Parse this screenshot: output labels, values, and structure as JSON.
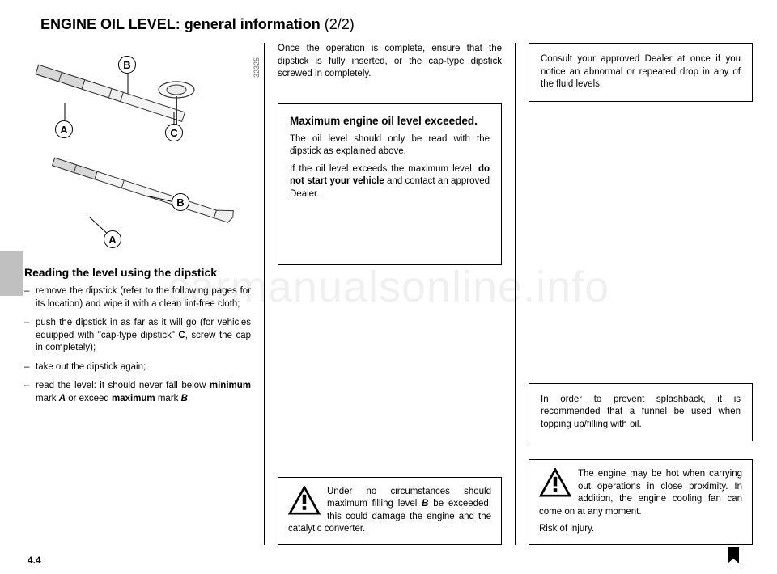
{
  "pageTitle": {
    "main": "ENGINE OIL LEVEL: general information",
    "part": "(2/2)"
  },
  "diagram": {
    "imageId": "32325",
    "labels": {
      "A": "A",
      "B": "B",
      "C": "C"
    }
  },
  "col1": {
    "subhead": "Reading the level using the dipstick",
    "bullets": [
      "remove the dipstick (refer to the following pages for its location) and wipe it with a clean lint-free cloth;",
      "push the dipstick in as far as it will go (for vehicles equipped with \"cap-type dipstick\" <b>C</b>, screw the cap in completely);",
      "take out the dipstick again;",
      "read the level: it should never fall below <b>minimum</b> mark <b><i>A</i></b> or exceed <b>maximum</b> mark <b><i>B</i></b>."
    ]
  },
  "col2": {
    "intro": "Once the operation is complete, ensure that the dipstick is fully inserted, or the cap-type dipstick screwed in completely.",
    "maxBox": {
      "head": "Maximum engine oil level exceeded.",
      "p1": "The oil level should only be read with the dipstick as explained above.",
      "p2": "If the oil level exceeds the maximum level, <b>do not start your vehicle</b> and contact an approved Dealer."
    },
    "warn": "Under no circumstances should maximum filling level <b><i>B</i></b> be exceeded: this could damage the engine and the catalytic converter."
  },
  "col3": {
    "dealerBox": "Consult your approved Dealer at once if you notice an abnormal or repeated drop in any of the fluid levels.",
    "funnelBox": "In order to prevent splashback, it is recommended that a funnel be used when topping up/filling with oil.",
    "hotWarn": {
      "p1": "The engine may be hot when carrying out operations in close proximity. In addition, the engine cooling fan can come on at any moment.",
      "p2": "Risk of injury."
    }
  },
  "pageNumber": "4.4",
  "watermark": "carmanualsonline.info",
  "colors": {
    "text": "#000000",
    "bg": "#ffffff",
    "tab": "#c0c0c0",
    "watermark": "rgba(0,0,0,0.06)"
  }
}
